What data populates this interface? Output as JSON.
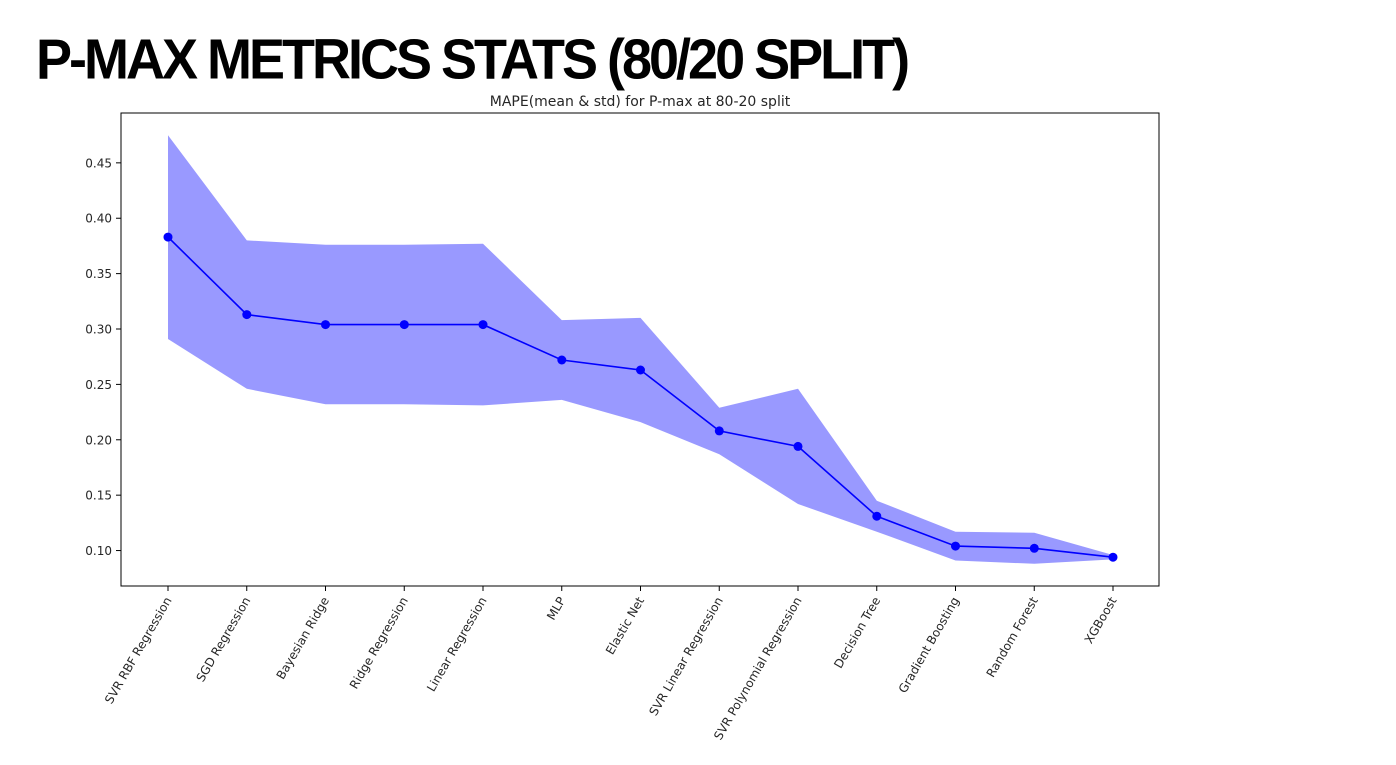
{
  "slide": {
    "title": "P-MAX METRICS STATS (80/20 SPLIT)"
  },
  "chart_data": {
    "type": "line",
    "title": "MAPE(mean & std) for P-max at 80-20 split",
    "xlabel": "",
    "ylabel": "",
    "categories": [
      "SVR RBF Regression",
      "SGD Regression",
      "Bayesian Ridge",
      "Ridge Regression",
      "Linear Regression",
      "MLP",
      "Elastic Net",
      "SVR Linear Regression",
      "SVR Polynomial Regression",
      "Decision Tree",
      "Gradient Boosting",
      "Random Forest",
      "XGBoost"
    ],
    "series": [
      {
        "values": [
          0.383,
          0.313,
          0.304,
          0.304,
          0.304,
          0.272,
          0.263,
          0.208,
          0.194,
          0.131,
          0.104,
          0.102,
          0.094
        ],
        "std": [
          0.092,
          0.067,
          0.072,
          0.072,
          0.073,
          0.036,
          0.047,
          0.021,
          0.052,
          0.014,
          0.013,
          0.014,
          0.002
        ],
        "color": "#0000ff",
        "band_color": "#8080ff"
      }
    ],
    "yticks": [
      0.1,
      0.15,
      0.2,
      0.25,
      0.3,
      0.35,
      0.4,
      0.45
    ],
    "ylim": [
      0.068,
      0.495
    ],
    "grid": false,
    "legend": "none"
  }
}
